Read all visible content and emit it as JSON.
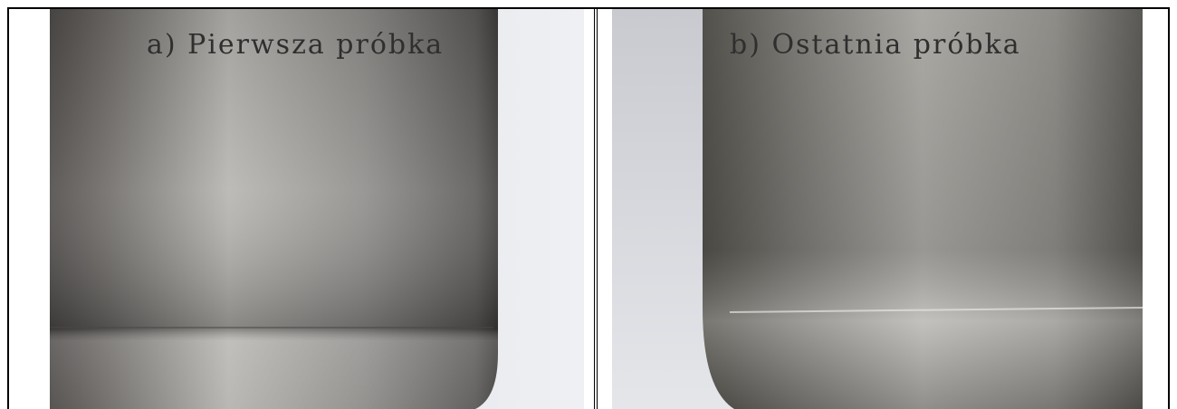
{
  "cells": [
    {
      "caption": "a) Pierwsza próbka"
    },
    {
      "caption": "b) Ostatnia próbka"
    }
  ]
}
